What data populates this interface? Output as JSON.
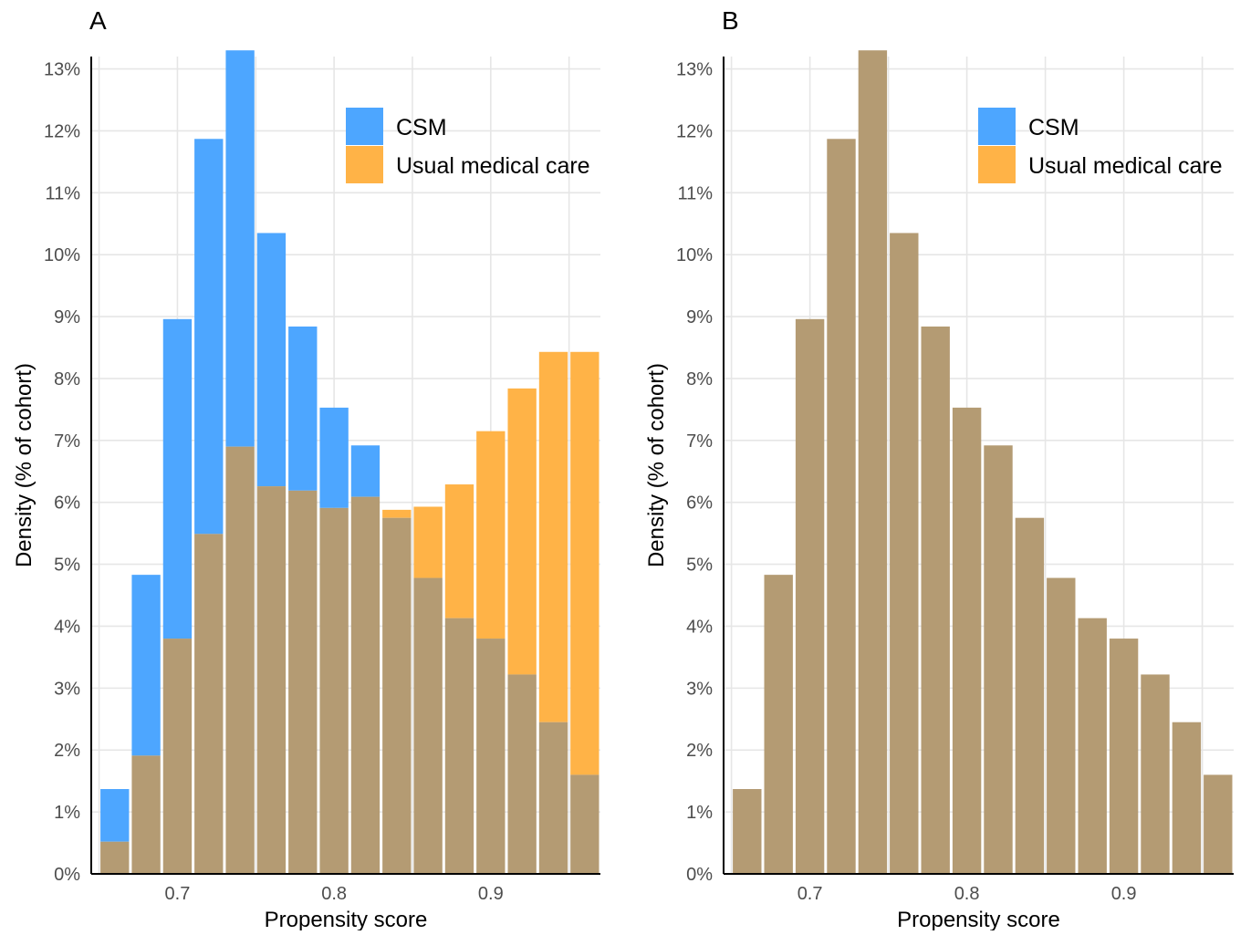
{
  "chart_data": [
    {
      "panel": "A",
      "type": "bar",
      "subtype": "overlapping-histogram",
      "xlabel": "Propensity score",
      "ylabel": "Density (% of cohort)",
      "xlim": [
        0.645,
        0.97
      ],
      "ylim": [
        0,
        13.2
      ],
      "xticks": [
        0.7,
        0.8,
        0.9
      ],
      "xtick_labels": [
        "0.7",
        "0.8",
        "0.9"
      ],
      "yticks": [
        0,
        1,
        2,
        3,
        4,
        5,
        6,
        7,
        8,
        9,
        10,
        11,
        12,
        13
      ],
      "ytick_labels": [
        "0%",
        "1%",
        "2%",
        "3%",
        "4%",
        "5%",
        "6%",
        "7%",
        "8%",
        "9%",
        "10%",
        "11%",
        "12%",
        "13%"
      ],
      "grid": true,
      "legend_position": "top-right",
      "x": [
        0.66,
        0.68,
        0.7,
        0.72,
        0.74,
        0.76,
        0.78,
        0.8,
        0.82,
        0.84,
        0.86,
        0.88,
        0.9,
        0.92,
        0.94,
        0.96
      ],
      "bin_width": 0.02,
      "series": [
        {
          "name": "CSM",
          "color": "#4da6ff",
          "values": [
            1.37,
            4.83,
            8.96,
            11.87,
            13.3,
            10.35,
            8.84,
            7.53,
            6.92,
            5.75,
            4.78,
            4.13,
            3.8,
            3.22,
            2.45,
            1.6
          ]
        },
        {
          "name": "Usual medical care",
          "color": "#ffb347",
          "values": [
            0.52,
            1.91,
            3.8,
            5.49,
            6.9,
            6.26,
            6.19,
            5.91,
            6.09,
            5.88,
            5.93,
            6.29,
            7.15,
            7.84,
            8.43,
            8.43
          ]
        }
      ],
      "overlap_color": "#b49b73"
    },
    {
      "panel": "B",
      "type": "bar",
      "subtype": "overlapping-histogram",
      "xlabel": "Propensity score",
      "ylabel": "Density (% of cohort)",
      "xlim": [
        0.645,
        0.97
      ],
      "ylim": [
        0,
        13.2
      ],
      "xticks": [
        0.7,
        0.8,
        0.9
      ],
      "xtick_labels": [
        "0.7",
        "0.8",
        "0.9"
      ],
      "yticks": [
        0,
        1,
        2,
        3,
        4,
        5,
        6,
        7,
        8,
        9,
        10,
        11,
        12,
        13
      ],
      "ytick_labels": [
        "0%",
        "1%",
        "2%",
        "3%",
        "4%",
        "5%",
        "6%",
        "7%",
        "8%",
        "9%",
        "10%",
        "11%",
        "12%",
        "13%"
      ],
      "grid": true,
      "legend_position": "top-right",
      "x": [
        0.66,
        0.68,
        0.7,
        0.72,
        0.74,
        0.76,
        0.78,
        0.8,
        0.82,
        0.84,
        0.86,
        0.88,
        0.9,
        0.92,
        0.94,
        0.96
      ],
      "bin_width": 0.02,
      "series": [
        {
          "name": "CSM",
          "color": "#4da6ff",
          "values": [
            1.37,
            4.83,
            8.96,
            11.87,
            13.3,
            10.35,
            8.84,
            7.53,
            6.92,
            5.75,
            4.78,
            4.13,
            3.8,
            3.22,
            2.45,
            1.6
          ]
        },
        {
          "name": "Usual medical care",
          "color": "#ffb347",
          "values": [
            1.37,
            4.83,
            8.96,
            11.87,
            13.3,
            10.35,
            8.84,
            7.53,
            6.92,
            5.75,
            4.78,
            4.13,
            3.8,
            3.22,
            2.45,
            1.6
          ]
        }
      ],
      "overlap_color": "#b49b73"
    }
  ]
}
